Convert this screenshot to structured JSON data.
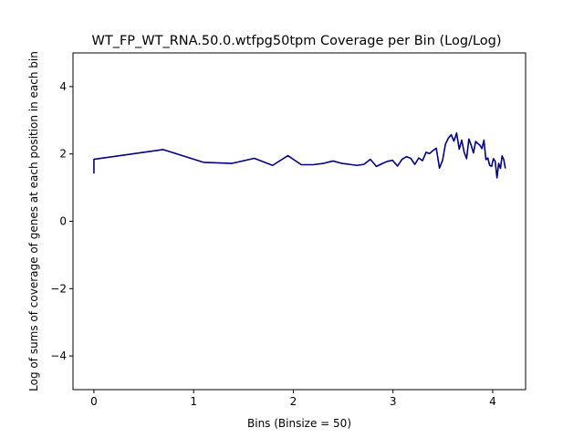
{
  "chart_data": {
    "type": "line",
    "title": "WT_FP_WT_RNA.50.0.wtfpg50tpm Coverage per Bin (Log/Log)",
    "xlabel": "Bins (Binsize = 50)",
    "ylabel": "Log of sums of coverage of genes at each position in each bin",
    "xlim": [
      -0.21,
      4.33
    ],
    "ylim": [
      -5,
      5
    ],
    "xticks": [
      0,
      1,
      2,
      3,
      4
    ],
    "yticks": [
      -4,
      -2,
      0,
      2,
      4
    ],
    "xtick_labels": [
      "0",
      "1",
      "2",
      "3",
      "4"
    ],
    "ytick_labels": [
      "−4",
      "−2",
      "0",
      "2",
      "4"
    ],
    "grid": false,
    "line_color": "#000080",
    "series": [
      {
        "x": [
          0.0,
          0.0,
          0.693,
          1.099,
          1.386,
          1.609,
          1.792,
          1.946,
          2.079,
          2.197,
          2.303,
          2.398,
          2.485,
          2.565,
          2.639,
          2.708,
          2.773,
          2.833,
          2.89,
          2.944,
          2.996,
          3.045,
          3.091,
          3.135,
          3.178,
          3.219,
          3.258,
          3.296,
          3.332,
          3.367,
          3.401,
          3.434,
          3.466,
          3.497,
          3.526,
          3.555,
          3.584,
          3.611,
          3.638,
          3.664,
          3.689,
          3.714,
          3.738,
          3.761,
          3.784,
          3.807,
          3.829,
          3.85,
          3.871,
          3.892,
          3.912,
          3.932,
          3.951,
          3.97,
          3.989,
          4.007,
          4.025,
          4.043,
          4.06,
          4.078,
          4.094,
          4.111,
          4.127
        ],
        "y": [
          1.42,
          1.84,
          2.13,
          1.75,
          1.72,
          1.87,
          1.66,
          1.95,
          1.68,
          1.68,
          1.72,
          1.79,
          1.72,
          1.69,
          1.66,
          1.69,
          1.84,
          1.63,
          1.71,
          1.78,
          1.81,
          1.64,
          1.84,
          1.92,
          1.87,
          1.69,
          1.88,
          1.8,
          2.05,
          2.01,
          2.1,
          2.17,
          1.58,
          1.81,
          2.29,
          2.47,
          2.57,
          2.38,
          2.62,
          2.14,
          2.41,
          2.05,
          1.86,
          2.44,
          2.26,
          2.03,
          2.37,
          2.31,
          2.26,
          2.16,
          2.41,
          1.83,
          1.88,
          1.66,
          1.63,
          1.86,
          1.78,
          1.29,
          1.72,
          1.57,
          1.94,
          1.83,
          1.57
        ]
      }
    ]
  }
}
